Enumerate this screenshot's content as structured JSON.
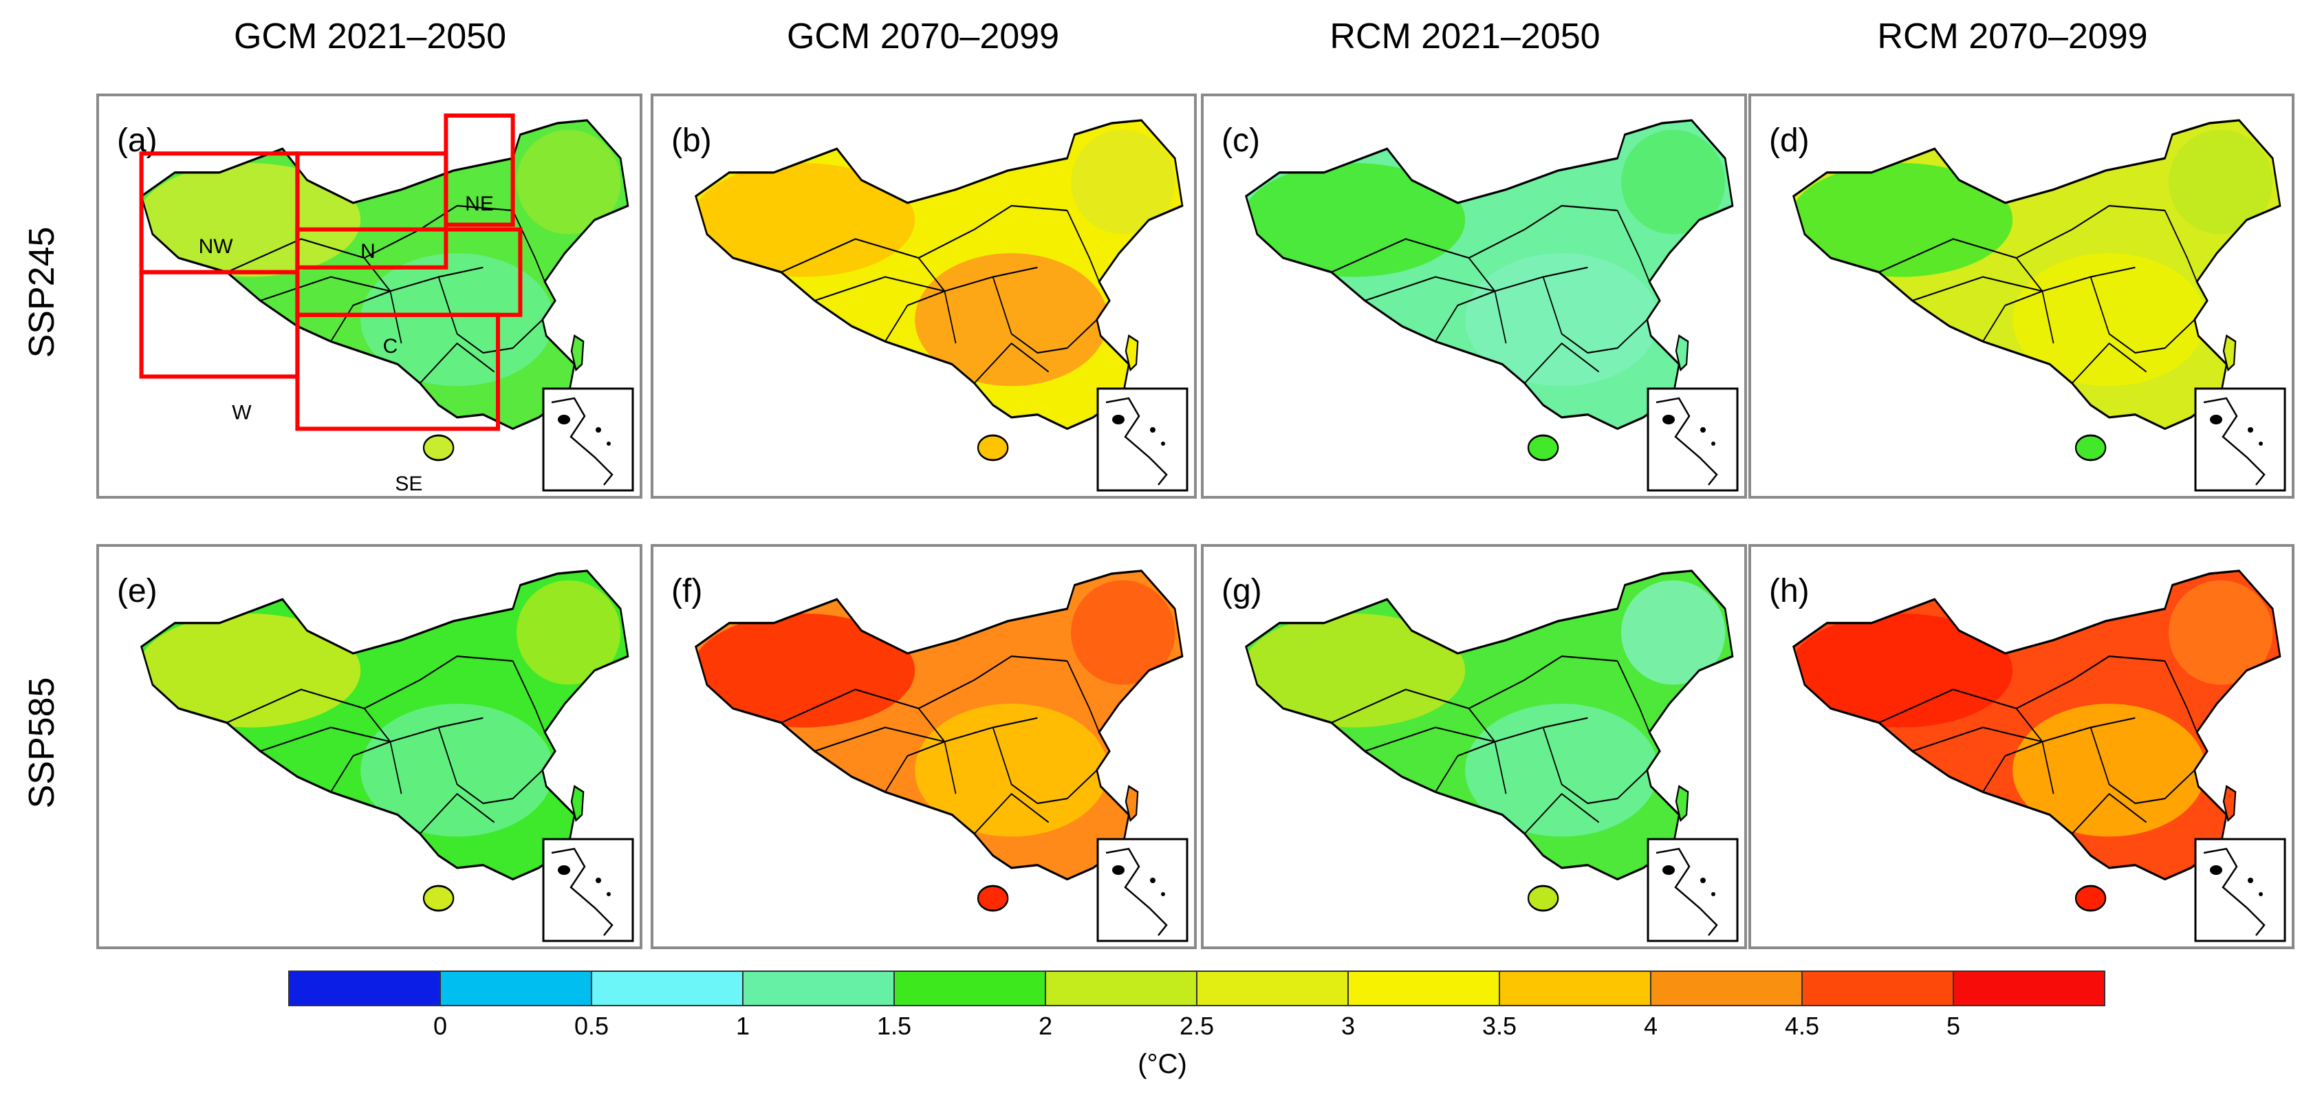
{
  "figure": {
    "column_titles": [
      "GCM 2021–2050",
      "GCM 2070–2099",
      "RCM 2021–2050",
      "RCM 2070–2099"
    ],
    "row_titles": [
      "SSP245",
      "SSP585"
    ],
    "panels": [
      {
        "label": "(a)",
        "scenario": "SSP245",
        "source": "GCM 2021–2050",
        "base_color": "#59e83d",
        "patches": [
          "#c8ec2e",
          "#66f08e",
          "#8ee82e"
        ],
        "regions": [
          "NW",
          "N",
          "NE",
          "C",
          "W",
          "SE"
        ]
      },
      {
        "label": "(b)",
        "scenario": "SSP245",
        "source": "GCM 2070–2099",
        "base_color": "#f5f000",
        "patches": [
          "#ffc400",
          "#ff9a1a",
          "#e2ea1e"
        ],
        "regions": []
      },
      {
        "label": "(c)",
        "scenario": "SSP245",
        "source": "RCM 2021–2050",
        "base_color": "#6df0a0",
        "patches": [
          "#44e82a",
          "#7ff1b8",
          "#55ec6a"
        ],
        "regions": []
      },
      {
        "label": "(d)",
        "scenario": "SSP245",
        "source": "RCM 2070–2099",
        "base_color": "#d6ec1c",
        "patches": [
          "#44e82a",
          "#eef200",
          "#bfea1e"
        ],
        "regions": []
      },
      {
        "label": "(e)",
        "scenario": "SSP585",
        "source": "GCM 2021–2050",
        "base_color": "#3ee82a",
        "patches": [
          "#cfea1e",
          "#66f08e",
          "#a6e81e"
        ],
        "regions": []
      },
      {
        "label": "(f)",
        "scenario": "SSP585",
        "source": "GCM 2070–2099",
        "base_color": "#ff8a1a",
        "patches": [
          "#ff2a00",
          "#ffc400",
          "#ff5a10"
        ],
        "regions": []
      },
      {
        "label": "(g)",
        "scenario": "SSP585",
        "source": "RCM 2021–2050",
        "base_color": "#4ee83a",
        "patches": [
          "#bde81e",
          "#6df0a0",
          "#7ff1b8"
        ],
        "regions": []
      },
      {
        "label": "(h)",
        "scenario": "SSP585",
        "source": "RCM 2070–2099",
        "base_color": "#ff4a10",
        "patches": [
          "#ff2000",
          "#ffb400",
          "#ff7a18"
        ],
        "regions": []
      }
    ],
    "colorbar": {
      "colors": [
        "#0a1ee6",
        "#00bff0",
        "#6cf6f8",
        "#66f0a6",
        "#3de81c",
        "#c4ec1c",
        "#e2ee12",
        "#f7f200",
        "#fdc400",
        "#f99010",
        "#fd4a0a",
        "#f80c0a"
      ],
      "tick_labels": [
        "0",
        "0.5",
        "1",
        "1.5",
        "2",
        "2.5",
        "3",
        "3.5",
        "4",
        "4.5",
        "5"
      ],
      "unit_label": "(°C)"
    }
  }
}
